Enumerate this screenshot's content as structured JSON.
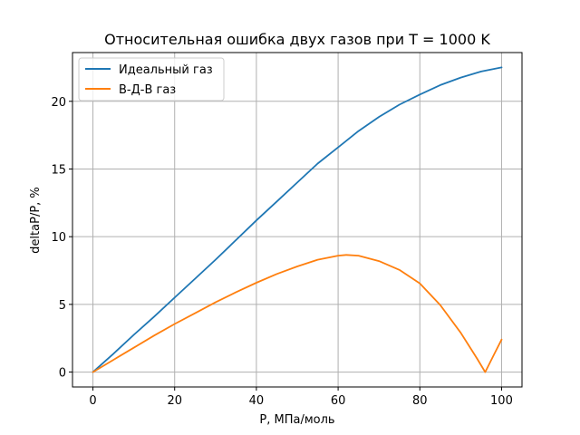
{
  "chart_data": {
    "type": "line",
    "title": "Относительная ошибка двух газов при T = 1000 K",
    "xlabel": "P, МПа/моль",
    "ylabel": "deltaP/P, %",
    "xlim": [
      -5,
      105
    ],
    "ylim": [
      -1.1,
      23.6
    ],
    "x_ticks": [
      0,
      20,
      40,
      60,
      80,
      100
    ],
    "y_ticks": [
      0,
      5,
      10,
      15,
      20
    ],
    "grid": true,
    "legend_position": "upper-left",
    "series": [
      {
        "name": "Идеальный газ",
        "color": "#1f77b4",
        "x": [
          0,
          5,
          10,
          15,
          20,
          25,
          30,
          35,
          40,
          45,
          50,
          55,
          60,
          65,
          70,
          75,
          80,
          85,
          90,
          95,
          100
        ],
        "y": [
          0,
          1.35,
          2.75,
          4.1,
          5.5,
          6.9,
          8.3,
          9.75,
          11.2,
          12.6,
          14.0,
          15.4,
          16.6,
          17.8,
          18.85,
          19.75,
          20.5,
          21.2,
          21.75,
          22.2,
          22.5
        ]
      },
      {
        "name": "В-Д-В газ",
        "color": "#ff7f0e",
        "x": [
          0,
          5,
          10,
          15,
          20,
          25,
          30,
          35,
          40,
          45,
          50,
          55,
          60,
          62,
          65,
          70,
          75,
          80,
          85,
          90,
          94,
          96,
          98,
          100
        ],
        "y": [
          0,
          0.9,
          1.8,
          2.7,
          3.55,
          4.35,
          5.15,
          5.9,
          6.6,
          7.25,
          7.8,
          8.3,
          8.6,
          8.65,
          8.6,
          8.2,
          7.55,
          6.55,
          4.95,
          2.9,
          1.0,
          0.0,
          1.2,
          2.4
        ]
      }
    ]
  }
}
